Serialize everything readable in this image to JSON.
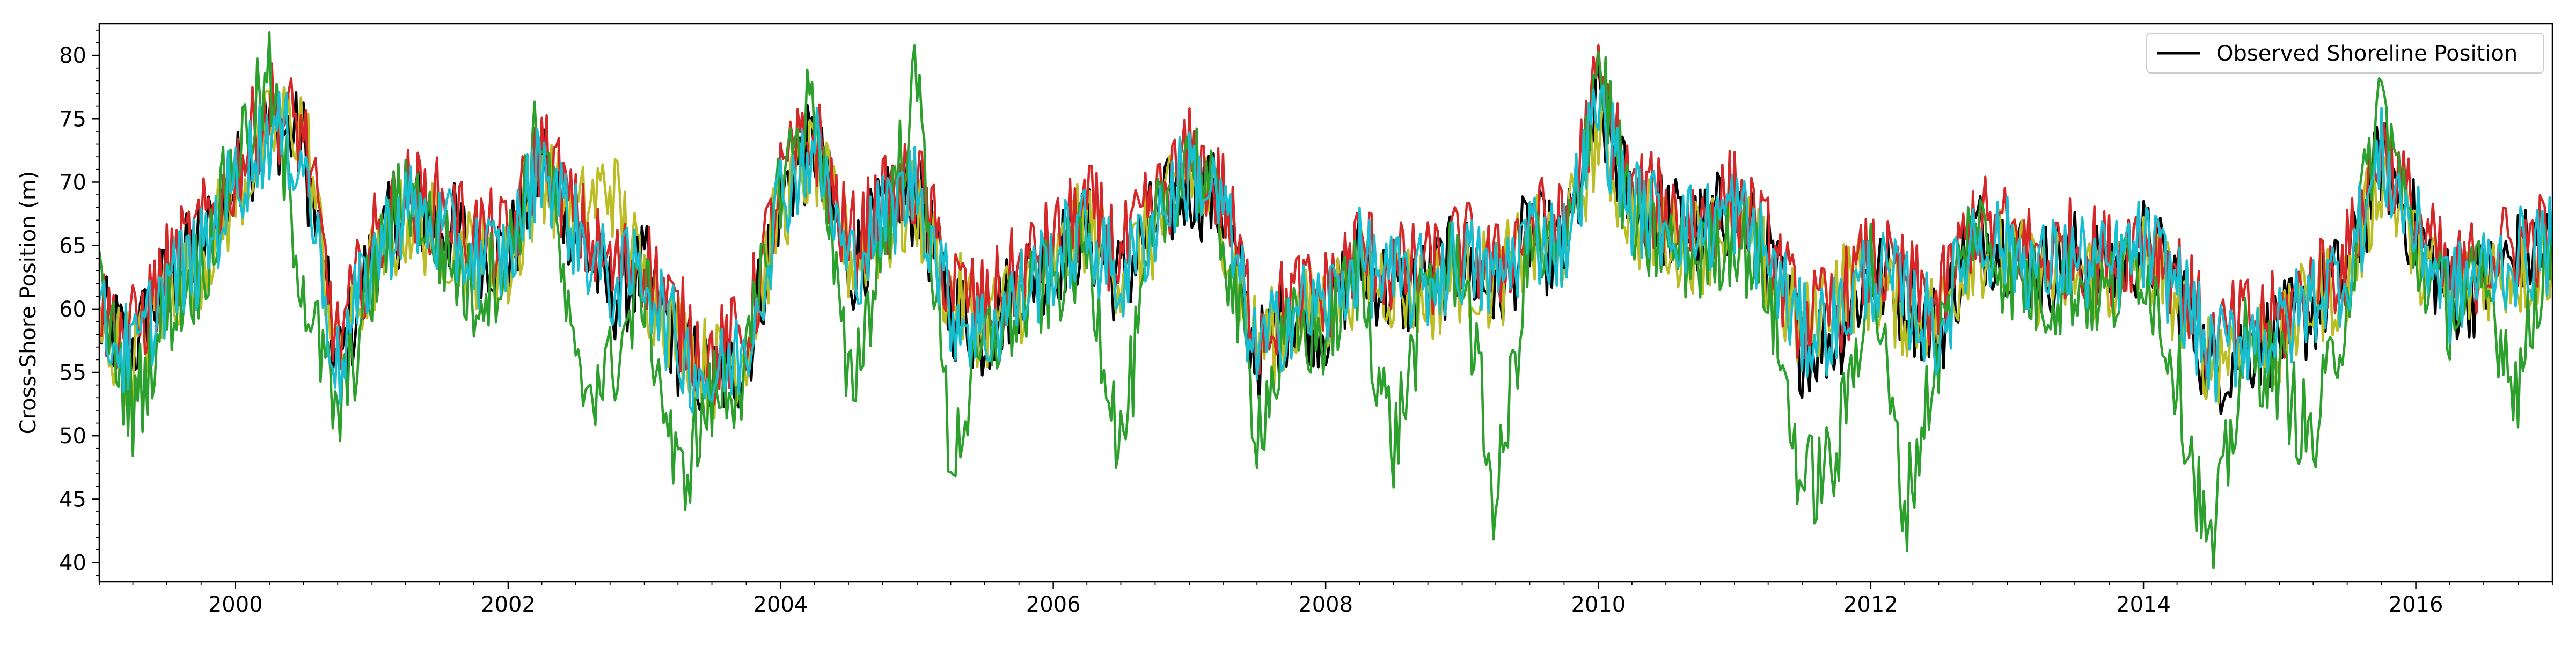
{
  "chart_data": {
    "type": "line",
    "title": "",
    "xlabel": "",
    "ylabel": "Cross-Shore Position (m)",
    "xlim": [
      "1999-01-01",
      "2017-01-01"
    ],
    "ylim": [
      38.5,
      82.5
    ],
    "x_ticks": [
      "2000",
      "2002",
      "2004",
      "2006",
      "2008",
      "2010",
      "2012",
      "2014",
      "2016"
    ],
    "y_ticks": [
      40,
      45,
      50,
      55,
      60,
      65,
      70,
      75,
      80
    ],
    "grid": false,
    "legend_position": "top-right",
    "legend": [
      "Observed Shoreline Position"
    ],
    "series": [
      {
        "name": "Observed Shoreline Position",
        "color": "#000000",
        "x": [
          "1999-01-01",
          "1999-04-01",
          "1999-07-01",
          "1999-10-01",
          "2000-01-01",
          "2000-04-01",
          "2000-07-01",
          "2000-10-01",
          "2001-01-01",
          "2001-04-01",
          "2001-07-01",
          "2001-10-01",
          "2002-01-01",
          "2002-04-01",
          "2002-07-01",
          "2002-10-01",
          "2003-01-01",
          "2003-04-01",
          "2003-07-01",
          "2003-10-01",
          "2004-01-01",
          "2004-04-01",
          "2004-07-01",
          "2004-10-01",
          "2005-01-01",
          "2005-04-01",
          "2005-07-01",
          "2005-10-01",
          "2006-01-01",
          "2006-04-01",
          "2006-07-01",
          "2006-10-01",
          "2007-01-01",
          "2007-04-01",
          "2007-07-01",
          "2007-10-01",
          "2008-01-01",
          "2008-04-01",
          "2008-07-01",
          "2008-10-01",
          "2009-01-01",
          "2009-04-01",
          "2009-07-01",
          "2009-10-01",
          "2010-01-01",
          "2010-04-01",
          "2010-07-01",
          "2010-10-01",
          "2011-01-01",
          "2011-04-01",
          "2011-07-01",
          "2011-10-01",
          "2012-01-01",
          "2012-04-01",
          "2012-07-01",
          "2012-10-01",
          "2013-01-01",
          "2013-04-01",
          "2013-07-01",
          "2013-10-01",
          "2014-01-01",
          "2014-04-01",
          "2014-07-01",
          "2014-10-01",
          "2015-01-01",
          "2015-04-01",
          "2015-07-01",
          "2015-10-01",
          "2016-01-01",
          "2016-04-01",
          "2016-07-01",
          "2016-10-01",
          "2016-12-31"
        ],
        "values": [
          59,
          57,
          62,
          65,
          70,
          75,
          73,
          55,
          64,
          68,
          67,
          65,
          64,
          72,
          66,
          61,
          63,
          57,
          54,
          56,
          69,
          73,
          63,
          67,
          69,
          60,
          58,
          62,
          64,
          66,
          62,
          67,
          70,
          68,
          56,
          60,
          59,
          64,
          61,
          62,
          64,
          61,
          66,
          64,
          76,
          68,
          67,
          66,
          68,
          64,
          57,
          58,
          63,
          61,
          58,
          66,
          65,
          63,
          64,
          63,
          65,
          62,
          55,
          57,
          58,
          60,
          63,
          72,
          66,
          61,
          62,
          64,
          65
        ]
      },
      {
        "name": "",
        "color": "#bcbd22",
        "x": [
          "1999-01-01",
          "1999-04-01",
          "1999-07-01",
          "1999-10-01",
          "2000-01-01",
          "2000-04-01",
          "2000-07-01",
          "2000-10-01",
          "2001-01-01",
          "2001-04-01",
          "2001-07-01",
          "2001-10-01",
          "2002-01-01",
          "2002-04-01",
          "2002-07-01",
          "2002-10-01",
          "2003-01-01",
          "2003-04-01",
          "2003-07-01",
          "2003-10-01",
          "2004-01-01",
          "2004-04-01",
          "2004-07-01",
          "2004-10-01",
          "2005-01-01",
          "2005-04-01",
          "2005-07-01",
          "2005-10-01",
          "2006-01-01",
          "2006-04-01",
          "2006-07-01",
          "2006-10-01",
          "2007-01-01",
          "2007-04-01",
          "2007-07-01",
          "2007-10-01",
          "2008-01-01",
          "2008-04-01",
          "2008-07-01",
          "2008-10-01",
          "2009-01-01",
          "2009-04-01",
          "2009-07-01",
          "2009-10-01",
          "2010-01-01",
          "2010-04-01",
          "2010-07-01",
          "2010-10-01",
          "2011-01-01",
          "2011-04-01",
          "2011-07-01",
          "2011-10-01",
          "2012-01-01",
          "2012-04-01",
          "2012-07-01",
          "2012-10-01",
          "2013-01-01",
          "2013-04-01",
          "2013-07-01",
          "2013-10-01",
          "2014-01-01",
          "2014-04-01",
          "2014-07-01",
          "2014-10-01",
          "2015-01-01",
          "2015-04-01",
          "2015-07-01",
          "2015-10-01",
          "2016-01-01",
          "2016-04-01",
          "2016-07-01",
          "2016-10-01",
          "2016-12-31"
        ],
        "values": [
          58,
          56,
          61,
          64,
          69,
          74,
          75,
          56,
          63,
          67,
          66,
          64,
          63,
          71,
          67,
          70,
          62,
          58,
          55,
          57,
          68,
          72,
          64,
          66,
          68,
          61,
          59,
          61,
          63,
          67,
          63,
          66,
          71,
          67,
          57,
          59,
          60,
          63,
          62,
          61,
          63,
          62,
          65,
          65,
          74,
          67,
          66,
          65,
          67,
          63,
          58,
          62,
          62,
          60,
          59,
          65,
          64,
          62,
          63,
          62,
          64,
          61,
          56,
          58,
          57,
          61,
          62,
          71,
          65,
          60,
          63,
          63,
          64
        ]
      },
      {
        "name": "",
        "color": "#d62728",
        "x": [
          "1999-01-01",
          "1999-04-01",
          "1999-07-01",
          "1999-10-01",
          "2000-01-01",
          "2000-04-01",
          "2000-07-01",
          "2000-10-01",
          "2001-01-01",
          "2001-04-01",
          "2001-07-01",
          "2001-10-01",
          "2002-01-01",
          "2002-04-01",
          "2002-07-01",
          "2002-10-01",
          "2003-01-01",
          "2003-04-01",
          "2003-07-01",
          "2003-10-01",
          "2004-01-01",
          "2004-04-01",
          "2004-07-01",
          "2004-10-01",
          "2005-01-01",
          "2005-04-01",
          "2005-07-01",
          "2005-10-01",
          "2006-01-01",
          "2006-04-01",
          "2006-07-01",
          "2006-10-01",
          "2007-01-01",
          "2007-04-01",
          "2007-07-01",
          "2007-10-01",
          "2008-01-01",
          "2008-04-01",
          "2008-07-01",
          "2008-10-01",
          "2009-01-01",
          "2009-04-01",
          "2009-07-01",
          "2009-10-01",
          "2010-01-01",
          "2010-04-01",
          "2010-07-01",
          "2010-10-01",
          "2011-01-01",
          "2011-04-01",
          "2011-07-01",
          "2011-10-01",
          "2012-01-01",
          "2012-04-01",
          "2012-07-01",
          "2012-10-01",
          "2013-01-01",
          "2013-04-01",
          "2013-07-01",
          "2013-10-01",
          "2014-01-01",
          "2014-04-01",
          "2014-07-01",
          "2014-10-01",
          "2015-01-01",
          "2015-04-01",
          "2015-07-01",
          "2015-10-01",
          "2016-01-01",
          "2016-04-01",
          "2016-07-01",
          "2016-10-01",
          "2016-12-31"
        ],
        "values": [
          60,
          58,
          63,
          66,
          71,
          76,
          74,
          57,
          65,
          69,
          68,
          66,
          65,
          73,
          67,
          63,
          64,
          59,
          56,
          58,
          70,
          74,
          65,
          68,
          70,
          62,
          60,
          63,
          65,
          68,
          64,
          68,
          72,
          69,
          58,
          61,
          61,
          65,
          63,
          63,
          65,
          63,
          67,
          66,
          78,
          69,
          68,
          67,
          69,
          65,
          59,
          60,
          64,
          62,
          60,
          67,
          66,
          64,
          65,
          64,
          66,
          63,
          57,
          59,
          59,
          62,
          64,
          73,
          67,
          62,
          64,
          65,
          66
        ]
      },
      {
        "name": "",
        "color": "#2ca02c",
        "x": [
          "1999-01-01",
          "1999-04-01",
          "1999-07-01",
          "1999-10-01",
          "2000-01-01",
          "2000-04-01",
          "2000-07-01",
          "2000-10-01",
          "2001-01-01",
          "2001-04-01",
          "2001-07-01",
          "2001-10-01",
          "2002-01-01",
          "2002-04-01",
          "2002-07-01",
          "2002-10-01",
          "2003-01-01",
          "2003-04-01",
          "2003-07-01",
          "2003-10-01",
          "2004-01-01",
          "2004-04-01",
          "2004-07-01",
          "2004-10-01",
          "2005-01-01",
          "2005-04-01",
          "2005-07-01",
          "2005-10-01",
          "2006-01-01",
          "2006-04-01",
          "2006-07-01",
          "2006-10-01",
          "2007-01-01",
          "2007-04-01",
          "2007-07-01",
          "2007-10-01",
          "2008-01-01",
          "2008-04-01",
          "2008-07-01",
          "2008-10-01",
          "2009-01-01",
          "2009-04-01",
          "2009-07-01",
          "2009-10-01",
          "2010-01-01",
          "2010-04-01",
          "2010-07-01",
          "2010-10-01",
          "2011-01-01",
          "2011-04-01",
          "2011-07-01",
          "2011-10-01",
          "2012-01-01",
          "2012-04-01",
          "2012-07-01",
          "2012-10-01",
          "2013-01-01",
          "2013-04-01",
          "2013-07-01",
          "2013-10-01",
          "2014-01-01",
          "2014-04-01",
          "2014-07-01",
          "2014-10-01",
          "2015-01-01",
          "2015-04-01",
          "2015-07-01",
          "2015-10-01",
          "2016-01-01",
          "2016-04-01",
          "2016-07-01",
          "2016-10-01",
          "2016-12-31"
        ],
        "values": [
          61,
          52,
          60,
          63,
          72,
          78,
          62,
          51,
          62,
          70,
          65,
          61,
          64,
          75,
          54,
          55,
          62,
          46,
          53,
          55,
          70,
          77,
          53,
          65,
          78,
          48,
          57,
          60,
          62,
          65,
          49,
          66,
          73,
          66,
          51,
          58,
          58,
          63,
          49,
          62,
          64,
          44,
          65,
          63,
          80,
          66,
          65,
          64,
          66,
          62,
          46,
          48,
          64,
          44,
          57,
          67,
          63,
          61,
          62,
          61,
          64,
          55,
          40,
          57,
          55,
          49,
          61,
          77,
          64,
          60,
          62,
          54,
          67
        ]
      },
      {
        "name": "",
        "color": "#17becf",
        "x": [
          "1999-01-01",
          "1999-04-01",
          "1999-07-01",
          "1999-10-01",
          "2000-01-01",
          "2000-04-01",
          "2000-07-01",
          "2000-10-01",
          "2001-01-01",
          "2001-04-01",
          "2001-07-01",
          "2001-10-01",
          "2002-01-01",
          "2002-04-01",
          "2002-07-01",
          "2002-10-01",
          "2003-01-01",
          "2003-04-01",
          "2003-07-01",
          "2003-10-01",
          "2004-01-01",
          "2004-04-01",
          "2004-07-01",
          "2004-10-01",
          "2005-01-01",
          "2005-04-01",
          "2005-07-01",
          "2005-10-01",
          "2006-01-01",
          "2006-04-01",
          "2006-07-01",
          "2006-10-01",
          "2007-01-01",
          "2007-04-01",
          "2007-07-01",
          "2007-10-01",
          "2008-01-01",
          "2008-04-01",
          "2008-07-01",
          "2008-10-01",
          "2009-01-01",
          "2009-04-01",
          "2009-07-01",
          "2009-10-01",
          "2010-01-01",
          "2010-04-01",
          "2010-07-01",
          "2010-10-01",
          "2011-01-01",
          "2011-04-01",
          "2011-07-01",
          "2011-10-01",
          "2012-01-01",
          "2012-04-01",
          "2012-07-01",
          "2012-10-01",
          "2013-01-01",
          "2013-04-01",
          "2013-07-01",
          "2013-10-01",
          "2014-01-01",
          "2014-04-01",
          "2014-07-01",
          "2014-10-01",
          "2015-01-01",
          "2015-04-01",
          "2015-07-01",
          "2015-10-01",
          "2016-01-01",
          "2016-04-01",
          "2016-07-01",
          "2016-10-01",
          "2016-12-31"
        ],
        "values": [
          59,
          56,
          62,
          64,
          70,
          74,
          72,
          55,
          64,
          68,
          66,
          64,
          64,
          72,
          66,
          62,
          63,
          57,
          54,
          57,
          69,
          73,
          63,
          67,
          70,
          60,
          58,
          61,
          64,
          66,
          62,
          67,
          71,
          68,
          56,
          60,
          60,
          64,
          62,
          62,
          64,
          62,
          66,
          65,
          76,
          68,
          67,
          66,
          68,
          64,
          58,
          59,
          63,
          61,
          58,
          66,
          65,
          63,
          64,
          63,
          65,
          62,
          56,
          58,
          58,
          61,
          63,
          72,
          66,
          61,
          63,
          64,
          65
        ]
      }
    ]
  }
}
